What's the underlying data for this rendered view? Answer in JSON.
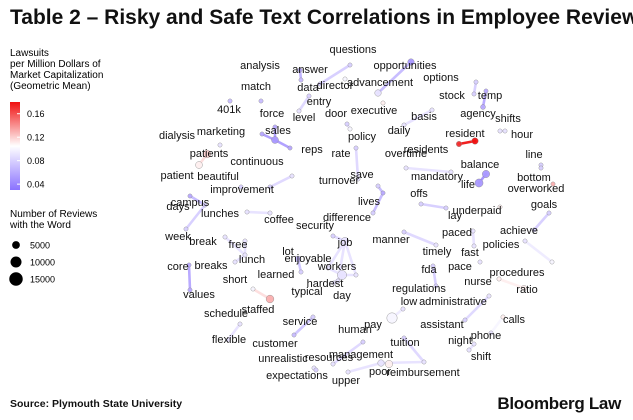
{
  "header": {
    "title": "Table 2 – Risky and Safe Text Correlations in Employee Reviews"
  },
  "footer": {
    "source": "Source: Plymouth State University",
    "brand": "Bloomberg Law"
  },
  "chart_data": {
    "type": "network",
    "legend": {
      "color_title": [
        "Lawsuits",
        "per Million Dollars of",
        "Market Capitalization",
        "(Geometric Mean)"
      ],
      "color_ticks": [
        0.16,
        0.12,
        0.08,
        0.04
      ],
      "color_range": [
        0.03,
        0.18
      ],
      "color_stops": [
        "#f01010",
        "#ffffff",
        "#8a72ff"
      ],
      "size_title": [
        "Number of Reviews",
        "with the Word"
      ],
      "size_ticks": [
        5000,
        10000,
        15000
      ]
    },
    "nodes": [
      {
        "word": "questions",
        "v": 0.08,
        "n": 1500
      },
      {
        "word": "opportunities",
        "v": 0.05,
        "n": 3500
      },
      {
        "word": "analysis",
        "v": 0.06,
        "n": 1500
      },
      {
        "word": "answer",
        "v": 0.08,
        "n": 1500
      },
      {
        "word": "director",
        "v": 0.1,
        "n": 1500
      },
      {
        "word": "advancement",
        "v": 0.09,
        "n": 3500
      },
      {
        "word": "options",
        "v": 0.08,
        "n": 1500
      },
      {
        "word": "data",
        "v": 0.07,
        "n": 1500
      },
      {
        "word": "stock",
        "v": 0.08,
        "n": 1500
      },
      {
        "word": "temp",
        "v": 0.06,
        "n": 1500
      },
      {
        "word": "agency",
        "v": 0.06,
        "n": 2000
      },
      {
        "word": "entry",
        "v": 0.08,
        "n": 1500
      },
      {
        "word": "executive",
        "v": 0.11,
        "n": 1500
      },
      {
        "word": "match",
        "v": 0.07,
        "n": 1500
      },
      {
        "word": "level",
        "v": 0.09,
        "n": 1500
      },
      {
        "word": "door",
        "v": 0.08,
        "n": 1500
      },
      {
        "word": "basis",
        "v": 0.09,
        "n": 1500
      },
      {
        "word": "shifts",
        "v": 0.09,
        "n": 1500
      },
      {
        "word": "401k",
        "v": 0.07,
        "n": 1500
      },
      {
        "word": "force",
        "v": 0.06,
        "n": 1500
      },
      {
        "word": "daily",
        "v": 0.09,
        "n": 1500
      },
      {
        "word": "resident",
        "v": 0.18,
        "n": 3500
      },
      {
        "word": "hour",
        "v": 0.09,
        "n": 1500
      },
      {
        "word": "marketing",
        "v": 0.06,
        "n": 1500
      },
      {
        "word": "sales",
        "v": 0.05,
        "n": 4000
      },
      {
        "word": "policy",
        "v": 0.1,
        "n": 1500
      },
      {
        "word": "dialysis",
        "v": 0.09,
        "n": 1500
      },
      {
        "word": "reps",
        "v": 0.06,
        "n": 1500
      },
      {
        "word": "residents",
        "v": 0.17,
        "n": 2500
      },
      {
        "word": "patients",
        "v": 0.12,
        "n": 5000
      },
      {
        "word": "rate",
        "v": 0.08,
        "n": 1500
      },
      {
        "word": "line",
        "v": 0.08,
        "n": 1500
      },
      {
        "word": "overtime",
        "v": 0.09,
        "n": 1500
      },
      {
        "word": "balance",
        "v": 0.05,
        "n": 4500
      },
      {
        "word": "continuous",
        "v": 0.09,
        "n": 1500
      },
      {
        "word": "patient",
        "v": 0.11,
        "n": 4000
      },
      {
        "word": "beautiful",
        "v": 0.08,
        "n": 1500
      },
      {
        "word": "mandatory",
        "v": 0.09,
        "n": 1500
      },
      {
        "word": "bottom",
        "v": 0.08,
        "n": 1500
      },
      {
        "word": "turnover",
        "v": 0.09,
        "n": 1500
      },
      {
        "word": "life",
        "v": 0.05,
        "n": 5500
      },
      {
        "word": "improvement",
        "v": 0.08,
        "n": 1500
      },
      {
        "word": "save",
        "v": 0.08,
        "n": 1500
      },
      {
        "word": "overworked",
        "v": 0.13,
        "n": 1500
      },
      {
        "word": "campus",
        "v": 0.06,
        "n": 1500
      },
      {
        "word": "offs",
        "v": 0.08,
        "n": 1500
      },
      {
        "word": "days",
        "v": 0.08,
        "n": 1500
      },
      {
        "word": "lives",
        "v": 0.06,
        "n": 1500
      },
      {
        "word": "goals",
        "v": 0.08,
        "n": 1500
      },
      {
        "word": "lay",
        "v": 0.08,
        "n": 1500
      },
      {
        "word": "lunches",
        "v": 0.09,
        "n": 1500
      },
      {
        "word": "coffee",
        "v": 0.09,
        "n": 1500
      },
      {
        "word": "difference",
        "v": 0.08,
        "n": 1500
      },
      {
        "word": "underpaid",
        "v": 0.11,
        "n": 1500
      },
      {
        "word": "security",
        "v": 0.08,
        "n": 1500
      },
      {
        "word": "week",
        "v": 0.08,
        "n": 1500
      },
      {
        "word": "achieve",
        "v": 0.08,
        "n": 1500
      },
      {
        "word": "paced",
        "v": 0.09,
        "n": 1500
      },
      {
        "word": "manner",
        "v": 0.08,
        "n": 1500
      },
      {
        "word": "break",
        "v": 0.09,
        "n": 1500
      },
      {
        "word": "free",
        "v": 0.09,
        "n": 1500
      },
      {
        "word": "job",
        "v": 0.09,
        "n": 4500
      },
      {
        "word": "fast",
        "v": 0.09,
        "n": 1500
      },
      {
        "word": "policies",
        "v": 0.09,
        "n": 1500
      },
      {
        "word": "lot",
        "v": 0.07,
        "n": 3000
      },
      {
        "word": "timely",
        "v": 0.09,
        "n": 1500
      },
      {
        "word": "lunch",
        "v": 0.09,
        "n": 1500
      },
      {
        "word": "breaks",
        "v": 0.09,
        "n": 1500
      },
      {
        "word": "enjoyable",
        "v": 0.09,
        "n": 1500
      },
      {
        "word": "workers",
        "v": 0.09,
        "n": 1500
      },
      {
        "word": "pace",
        "v": 0.09,
        "n": 1500
      },
      {
        "word": "core",
        "v": 0.06,
        "n": 1500
      },
      {
        "word": "learned",
        "v": 0.08,
        "n": 1500
      },
      {
        "word": "hardest",
        "v": 0.09,
        "n": 1500
      },
      {
        "word": "procedures",
        "v": 0.1,
        "n": 1500
      },
      {
        "word": "short",
        "v": 0.1,
        "n": 1500
      },
      {
        "word": "nurse",
        "v": 0.11,
        "n": 1500
      },
      {
        "word": "fda",
        "v": 0.08,
        "n": 1500
      },
      {
        "word": "typical",
        "v": 0.09,
        "n": 1500
      },
      {
        "word": "day",
        "v": 0.09,
        "n": 7000
      },
      {
        "word": "values",
        "v": 0.06,
        "n": 1500
      },
      {
        "word": "ratio",
        "v": 0.11,
        "n": 2500
      },
      {
        "word": "regulations",
        "v": 0.08,
        "n": 1500
      },
      {
        "word": "staffed",
        "v": 0.13,
        "n": 5000
      },
      {
        "word": "low",
        "v": 0.09,
        "n": 1500
      },
      {
        "word": "administrative",
        "v": 0.09,
        "n": 1500
      },
      {
        "word": "schedule",
        "v": 0.09,
        "n": 1500
      },
      {
        "word": "pay",
        "v": 0.1,
        "n": 9000
      },
      {
        "word": "assistant",
        "v": 0.08,
        "n": 1500
      },
      {
        "word": "calls",
        "v": 0.11,
        "n": 1500
      },
      {
        "word": "service",
        "v": 0.08,
        "n": 1500
      },
      {
        "word": "flexible",
        "v": 0.09,
        "n": 1500
      },
      {
        "word": "human",
        "v": 0.08,
        "n": 1500
      },
      {
        "word": "phone",
        "v": 0.09,
        "n": 1500
      },
      {
        "word": "customer",
        "v": 0.07,
        "n": 1500
      },
      {
        "word": "tuition",
        "v": 0.08,
        "n": 1500
      },
      {
        "word": "night",
        "v": 0.09,
        "n": 1500
      },
      {
        "word": "unrealistic",
        "v": 0.09,
        "n": 1500
      },
      {
        "word": "resources",
        "v": 0.09,
        "n": 1500
      },
      {
        "word": "management",
        "v": 0.09,
        "n": 3500
      },
      {
        "word": "shift",
        "v": 0.09,
        "n": 1500
      },
      {
        "word": "expectations",
        "v": 0.08,
        "n": 1500
      },
      {
        "word": "reimbursement",
        "v": 0.09,
        "n": 1500
      },
      {
        "word": "poor",
        "v": 0.11,
        "n": 4500
      },
      {
        "word": "upper",
        "v": 0.09,
        "n": 1500
      }
    ],
    "edges": [
      [
        "questions",
        "answer"
      ],
      [
        "analysis",
        "data"
      ],
      [
        "advancement",
        "opportunities"
      ],
      [
        "stock",
        "options"
      ],
      [
        "agency",
        "temp"
      ],
      [
        "entry",
        "level"
      ],
      [
        "director",
        "executive"
      ],
      [
        "door",
        "policy"
      ],
      [
        "force",
        "sales"
      ],
      [
        "marketing",
        "sales"
      ],
      [
        "sales",
        "reps"
      ],
      [
        "resident",
        "residents"
      ],
      [
        "daily",
        "basis"
      ],
      [
        "shifts",
        "hour"
      ],
      [
        "dialysis",
        "patients"
      ],
      [
        "patients",
        "patient"
      ],
      [
        "balance",
        "life"
      ],
      [
        "continuous",
        "improvement"
      ],
      [
        "rate",
        "turnover"
      ],
      [
        "overtime",
        "mandatory"
      ],
      [
        "line",
        "bottom"
      ],
      [
        "save",
        "lives"
      ],
      [
        "lives",
        "difference"
      ],
      [
        "offs",
        "lay"
      ],
      [
        "goals",
        "achieve"
      ],
      [
        "paced",
        "fast"
      ],
      [
        "campus",
        "days"
      ],
      [
        "week",
        "days"
      ],
      [
        "lunches",
        "coffee"
      ],
      [
        "break",
        "lunch"
      ],
      [
        "free",
        "lunch"
      ],
      [
        "breaks",
        "lunch"
      ],
      [
        "security",
        "job"
      ],
      [
        "manner",
        "timely"
      ],
      [
        "policies",
        "procedures"
      ],
      [
        "lot",
        "learned"
      ],
      [
        "enjoyable",
        "job"
      ],
      [
        "job",
        "workers"
      ],
      [
        "hardest",
        "job"
      ],
      [
        "typical",
        "day"
      ],
      [
        "day",
        "workers"
      ],
      [
        "day",
        "enjoyable"
      ],
      [
        "day",
        "hardest"
      ],
      [
        "fda",
        "regulations"
      ],
      [
        "nurse",
        "ratio"
      ],
      [
        "core",
        "values"
      ],
      [
        "short",
        "staffed"
      ],
      [
        "low",
        "pay"
      ],
      [
        "administrative",
        "assistant"
      ],
      [
        "phone",
        "calls"
      ],
      [
        "customer",
        "service"
      ],
      [
        "human",
        "resources"
      ],
      [
        "schedule",
        "flexible"
      ],
      [
        "tuition",
        "reimbursement"
      ],
      [
        "night",
        "shift"
      ],
      [
        "unrealistic",
        "expectations"
      ],
      [
        "upper",
        "management"
      ],
      [
        "poor",
        "management"
      ],
      [
        "management",
        "reimbursement"
      ]
    ]
  }
}
